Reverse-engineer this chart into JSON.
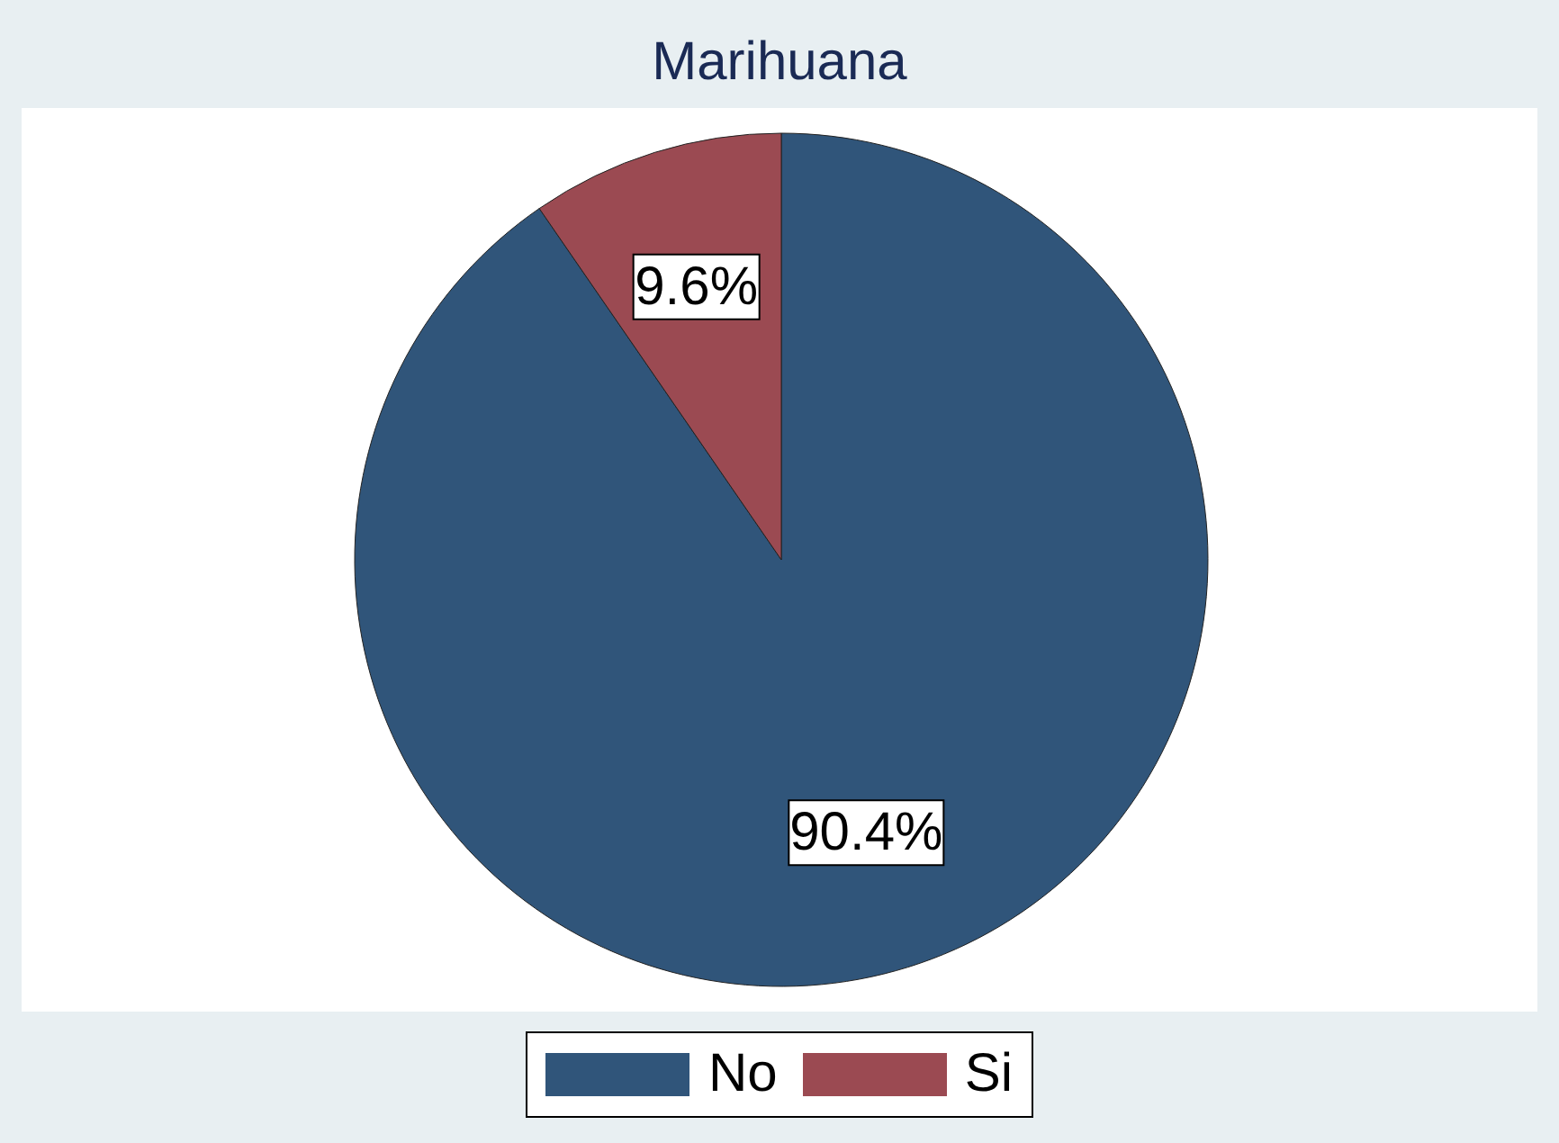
{
  "chart_data": {
    "type": "pie",
    "title": "Marihuana",
    "categories": [
      "No",
      "Si"
    ],
    "values": [
      90.4,
      9.6
    ],
    "colors": [
      "#30557a",
      "#9b4a52"
    ],
    "value_labels": [
      "90.4%",
      "9.6%"
    ],
    "legend": "bottom"
  }
}
